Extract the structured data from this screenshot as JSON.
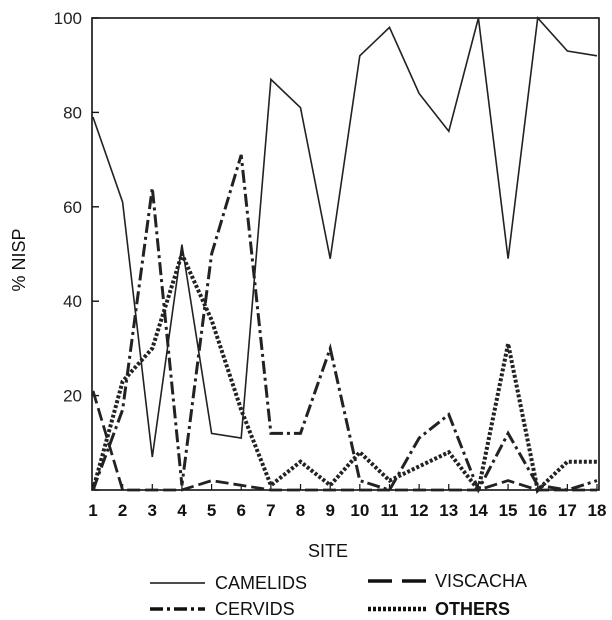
{
  "chart_data": {
    "type": "line",
    "xlabel": "SITE",
    "ylabel": "% NISP",
    "ylim": [
      0,
      100
    ],
    "yticks": [
      0,
      20,
      40,
      60,
      80,
      100
    ],
    "yticks_labeled": [
      "20",
      "40",
      "60",
      "80",
      "100"
    ],
    "x": [
      "1",
      "2",
      "3",
      "4",
      "5",
      "6",
      "7",
      "8",
      "9",
      "10",
      "11",
      "12",
      "13",
      "14",
      "15",
      "16",
      "17",
      "18"
    ],
    "grid": false,
    "legend_position": "bottom",
    "series": [
      {
        "name": "CAMELIDS",
        "style": "solid",
        "values": [
          79,
          61,
          7,
          52,
          12,
          11,
          87,
          81,
          49,
          92,
          98,
          84,
          76,
          100,
          49,
          100,
          93,
          92
        ]
      },
      {
        "name": "CERVIDS",
        "style": "dashdot",
        "values": [
          0,
          17,
          64,
          1,
          50,
          71,
          12,
          12,
          30,
          2,
          0,
          11,
          16,
          0,
          12,
          1,
          0,
          2
        ]
      },
      {
        "name": "VISCACHA",
        "style": "dashed",
        "values": [
          21,
          0,
          0,
          0,
          2,
          1,
          0,
          0,
          0,
          0,
          0,
          0,
          0,
          0,
          2,
          0,
          0,
          0
        ]
      },
      {
        "name": "OTHERS",
        "style": "dotted",
        "values": [
          0,
          23,
          30,
          50,
          36,
          17,
          1,
          6,
          1,
          8,
          2,
          5,
          8,
          0,
          31,
          0,
          6,
          6
        ]
      }
    ]
  }
}
